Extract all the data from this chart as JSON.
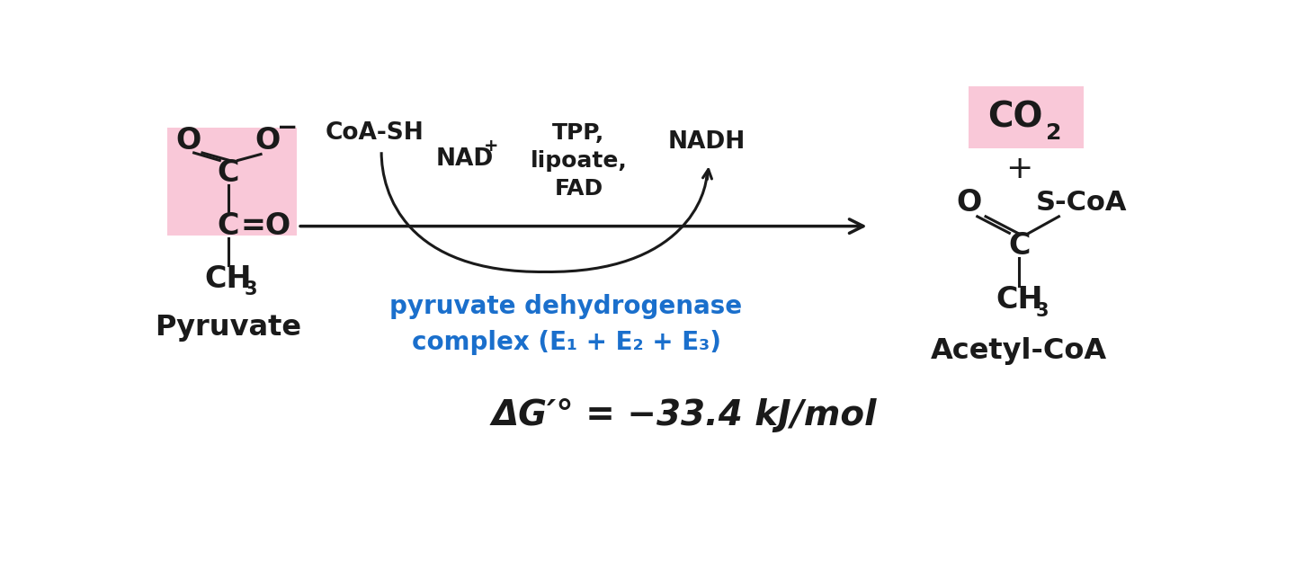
{
  "bg_color": "#ffffff",
  "pink_bg": "#f9c8d8",
  "pink_light": "#f9c8d8",
  "blue_color": "#1a6fcc",
  "black_color": "#1a1a1a",
  "fig_width": 14.4,
  "fig_height": 6.53,
  "pyruvate_label": "Pyruvate",
  "acetylcoa_label": "Acetyl-CoA",
  "co2_label": "CO",
  "co2_sub": "2",
  "plus_label": "+",
  "coa_sh_label": "CoA-SH",
  "nad_label": "NAD",
  "nad_sup": "+",
  "tpp_label": "TPP,",
  "lipoate_label": "lipoate,",
  "fad_label": "FAD",
  "nadh_label": "NADH",
  "enzyme_line1": "pyruvate dehydrogenase",
  "enzyme_line2": "complex (E₁ + E₂ + E₃)",
  "delta_g": "ΔG′° = −33.4 kJ/mol",
  "arrow_color": "#1a1a1a",
  "curve_color": "#1a1a1a"
}
